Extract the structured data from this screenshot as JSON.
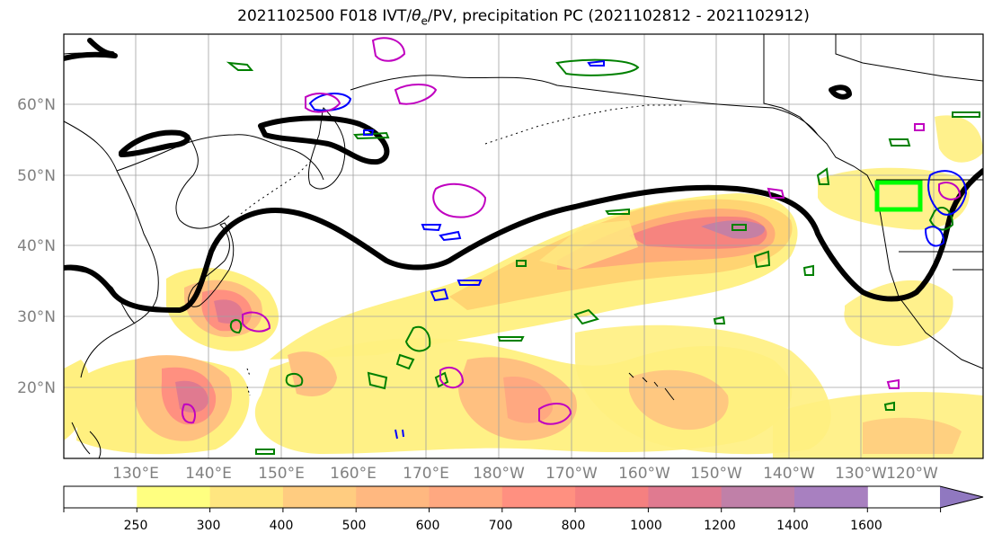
{
  "title": {
    "prefix": "2021102500 F018 IVT/",
    "theta": "θ",
    "theta_sub": "e",
    "suffix": "/PV, precipitation PC (2021102812 - 2021102912)"
  },
  "map": {
    "lat_labels": [
      "60°N",
      "50°N",
      "40°N",
      "30°N",
      "20°N"
    ],
    "lon_labels": [
      "130°E",
      "140°E",
      "150°E",
      "160°E",
      "170°E",
      "180°W",
      "170°W",
      "160°W",
      "150°W",
      "140°W",
      "130°W",
      "120°W"
    ]
  },
  "colorbar": {
    "ticks": [
      "250",
      "300",
      "400",
      "500",
      "600",
      "700",
      "800",
      "1000",
      "1200",
      "1400",
      "1600"
    ],
    "colors": [
      "#ffffff",
      "#ffff80",
      "#ffe680",
      "#ffcc80",
      "#ffb880",
      "#ffa880",
      "#ff9080",
      "#f58080",
      "#e07a90",
      "#c080a8",
      "#a880c0",
      "#9078c0"
    ]
  },
  "colors": {
    "jet_line": "#000000",
    "contour_green": "#008000",
    "contour_blue": "#0000ff",
    "contour_magenta": "#c000c0",
    "target_box": "#00ff00",
    "land_line": "#000000",
    "grid": "#a0a0a0",
    "axis_label": "#808080"
  }
}
